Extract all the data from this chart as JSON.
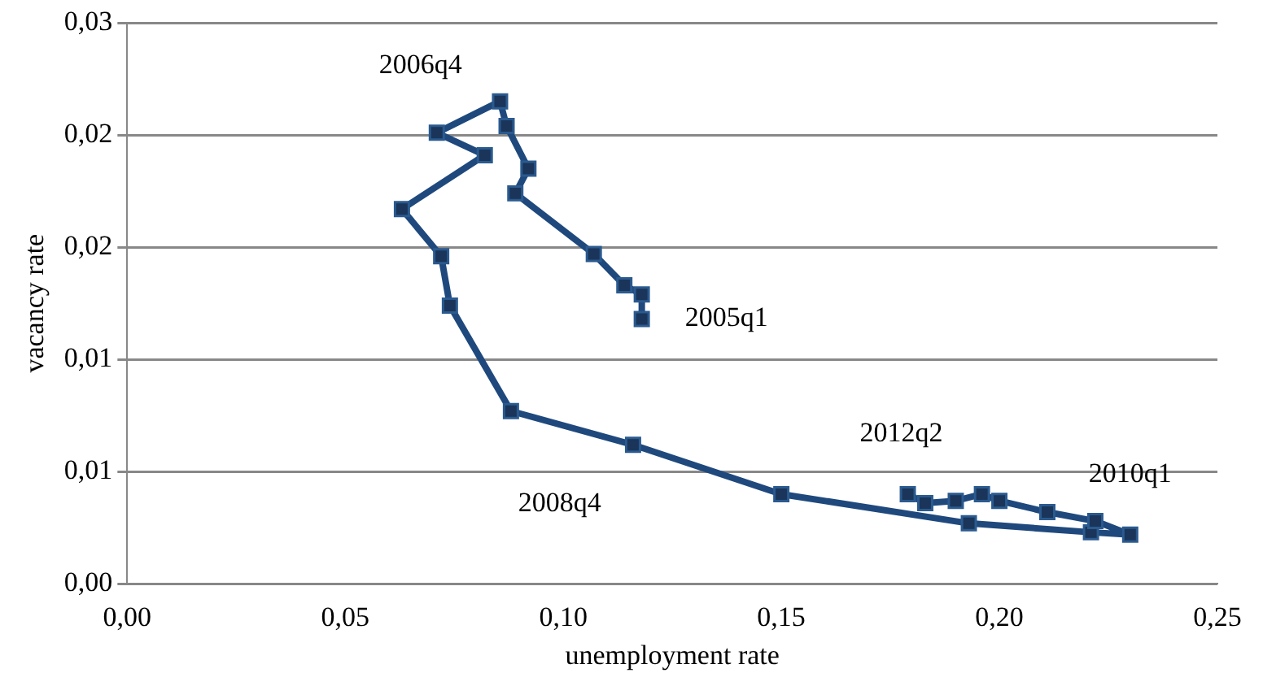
{
  "chart_data": {
    "type": "line",
    "xlabel": "unemployment rate",
    "ylabel": "vacancy rate",
    "xlim": [
      0,
      0.25
    ],
    "xticks": [
      {
        "value": 0,
        "label": "0,00"
      },
      {
        "value": 0.05,
        "label": "0,05"
      },
      {
        "value": 0.1,
        "label": "0,10"
      },
      {
        "value": 0.15,
        "label": "0,15"
      },
      {
        "value": 0.2,
        "label": "0,20"
      },
      {
        "value": 0.25,
        "label": "0,25"
      }
    ],
    "ylim": [
      0,
      0.025
    ],
    "yticks": [
      {
        "value": 0,
        "label": "0,00"
      },
      {
        "value": 0.005,
        "label": "0,01"
      },
      {
        "value": 0.01,
        "label": "0,01"
      },
      {
        "value": 0.015,
        "label": "0,02"
      },
      {
        "value": 0.02,
        "label": "0,02"
      },
      {
        "value": 0.025,
        "label": "0,03"
      }
    ],
    "grid": "y",
    "legend": false,
    "marker": "square",
    "line_style": "solid",
    "series": [
      {
        "color": "#1f497d",
        "x": [
          0.118,
          0.118,
          0.114,
          0.107,
          0.089,
          0.092,
          0.087,
          0.0855,
          0.071,
          0.082,
          0.063,
          0.072,
          0.074,
          0.088,
          0.116,
          0.15,
          0.193,
          0.221,
          0.23,
          0.222,
          0.211,
          0.2,
          0.196,
          0.19,
          0.183,
          0.179
        ],
        "values": [
          0.0118,
          0.0129,
          0.0133,
          0.0147,
          0.0174,
          0.0185,
          0.0204,
          0.0215,
          0.0201,
          0.0191,
          0.0167,
          0.0146,
          0.0124,
          0.0077,
          0.0062,
          0.004,
          0.0027,
          0.0023,
          0.0022,
          0.0028,
          0.0032,
          0.0037,
          0.004,
          0.0037,
          0.0036,
          0.004
        ]
      }
    ],
    "annotations": [
      {
        "text": "2005q1",
        "x": 0.118,
        "y": 0.0118
      },
      {
        "text": "2006q4",
        "x": 0.071,
        "y": 0.0201
      },
      {
        "text": "2008q4",
        "x": 0.088,
        "y": 0.0077
      },
      {
        "text": "2012q2",
        "x": 0.179,
        "y": 0.004
      },
      {
        "text": "2010q1",
        "x": 0.23,
        "y": 0.0022
      }
    ]
  }
}
